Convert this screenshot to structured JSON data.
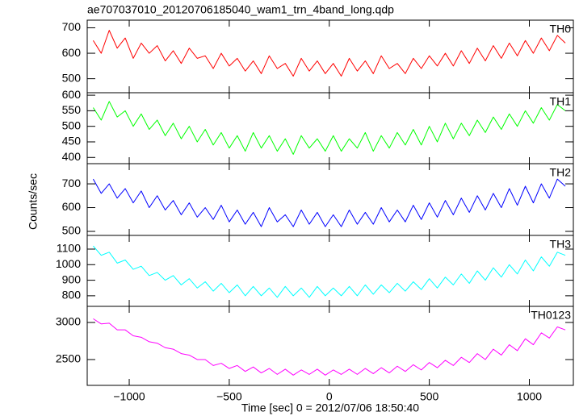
{
  "chart_data": [
    {
      "type": "line",
      "title": "ae707037010_20120706185040_wam1_trn_4band_long.qdp",
      "label": "TH0",
      "color": "#ff0000",
      "x": [
        -1180,
        -1140,
        -1100,
        -1060,
        -1020,
        -980,
        -940,
        -900,
        -860,
        -820,
        -780,
        -740,
        -700,
        -660,
        -620,
        -580,
        -540,
        -500,
        -460,
        -420,
        -380,
        -340,
        -300,
        -260,
        -220,
        -180,
        -140,
        -100,
        -60,
        -20,
        20,
        60,
        100,
        140,
        180,
        220,
        260,
        300,
        340,
        380,
        420,
        460,
        500,
        540,
        580,
        620,
        660,
        700,
        740,
        780,
        820,
        860,
        900,
        940,
        980,
        1020,
        1060,
        1100,
        1140,
        1180
      ],
      "values": [
        650,
        600,
        690,
        620,
        660,
        580,
        640,
        600,
        630,
        570,
        610,
        560,
        620,
        580,
        590,
        540,
        600,
        550,
        580,
        530,
        570,
        520,
        590,
        540,
        560,
        510,
        580,
        530,
        570,
        520,
        560,
        510,
        580,
        530,
        570,
        520,
        590,
        540,
        560,
        520,
        580,
        540,
        590,
        550,
        600,
        550,
        610,
        560,
        620,
        570,
        630,
        580,
        640,
        590,
        650,
        600,
        660,
        610,
        670,
        640
      ],
      "xlim": [
        -1210,
        1220
      ],
      "ylim": [
        445,
        730
      ],
      "yticks": [
        500,
        600,
        700
      ]
    },
    {
      "type": "line",
      "label": "TH1",
      "color": "#00ff00",
      "x": [
        -1180,
        -1140,
        -1100,
        -1060,
        -1020,
        -980,
        -940,
        -900,
        -860,
        -820,
        -780,
        -740,
        -700,
        -660,
        -620,
        -580,
        -540,
        -500,
        -460,
        -420,
        -380,
        -340,
        -300,
        -260,
        -220,
        -180,
        -140,
        -100,
        -60,
        -20,
        20,
        60,
        100,
        140,
        180,
        220,
        260,
        300,
        340,
        380,
        420,
        460,
        500,
        540,
        580,
        620,
        660,
        700,
        740,
        780,
        820,
        860,
        900,
        940,
        980,
        1020,
        1060,
        1100,
        1140,
        1180
      ],
      "values": [
        560,
        520,
        580,
        530,
        550,
        500,
        540,
        490,
        520,
        470,
        510,
        460,
        500,
        450,
        490,
        440,
        480,
        430,
        470,
        420,
        480,
        430,
        470,
        420,
        460,
        410,
        470,
        430,
        460,
        420,
        470,
        420,
        460,
        430,
        480,
        420,
        470,
        430,
        480,
        440,
        490,
        440,
        500,
        450,
        510,
        460,
        510,
        470,
        520,
        480,
        530,
        490,
        540,
        500,
        550,
        510,
        560,
        520,
        570,
        550
      ],
      "xlim": [
        -1210,
        1220
      ],
      "ylim": [
        380,
        608
      ],
      "yticks": [
        400,
        450,
        500,
        550,
        600
      ]
    },
    {
      "type": "line",
      "label": "TH2",
      "color": "#0000ff",
      "ylabel": "Counts/sec",
      "x": [
        -1180,
        -1140,
        -1100,
        -1060,
        -1020,
        -980,
        -940,
        -900,
        -860,
        -820,
        -780,
        -740,
        -700,
        -660,
        -620,
        -580,
        -540,
        -500,
        -460,
        -420,
        -380,
        -340,
        -300,
        -260,
        -220,
        -180,
        -140,
        -100,
        -60,
        -20,
        20,
        60,
        100,
        140,
        180,
        220,
        260,
        300,
        340,
        380,
        420,
        460,
        500,
        540,
        580,
        620,
        660,
        700,
        740,
        780,
        820,
        860,
        900,
        940,
        980,
        1020,
        1060,
        1100,
        1140,
        1180
      ],
      "values": [
        720,
        660,
        700,
        640,
        680,
        620,
        670,
        600,
        650,
        590,
        630,
        570,
        620,
        560,
        600,
        550,
        610,
        540,
        590,
        530,
        580,
        520,
        600,
        540,
        570,
        520,
        590,
        530,
        580,
        520,
        570,
        520,
        590,
        530,
        580,
        530,
        600,
        540,
        590,
        540,
        610,
        550,
        620,
        560,
        630,
        570,
        640,
        580,
        650,
        590,
        660,
        600,
        680,
        610,
        690,
        620,
        700,
        640,
        720,
        690
      ],
      "xlim": [
        -1210,
        1220
      ],
      "ylim": [
        483,
        785
      ],
      "yticks": [
        500,
        600,
        700
      ]
    },
    {
      "type": "line",
      "label": "TH3",
      "color": "#00ffff",
      "x": [
        -1180,
        -1140,
        -1100,
        -1060,
        -1020,
        -980,
        -940,
        -900,
        -860,
        -820,
        -780,
        -740,
        -700,
        -660,
        -620,
        -580,
        -540,
        -500,
        -460,
        -420,
        -380,
        -340,
        -300,
        -260,
        -220,
        -180,
        -140,
        -100,
        -60,
        -20,
        20,
        60,
        100,
        140,
        180,
        220,
        260,
        300,
        340,
        380,
        420,
        460,
        500,
        540,
        580,
        620,
        660,
        700,
        740,
        780,
        820,
        860,
        900,
        940,
        980,
        1020,
        1060,
        1100,
        1140,
        1180
      ],
      "values": [
        1120,
        1060,
        1080,
        1010,
        1030,
        970,
        990,
        930,
        950,
        900,
        930,
        870,
        910,
        850,
        890,
        830,
        880,
        820,
        870,
        800,
        860,
        800,
        850,
        790,
        860,
        800,
        850,
        790,
        860,
        800,
        850,
        800,
        860,
        800,
        870,
        810,
        870,
        820,
        880,
        830,
        890,
        840,
        910,
        850,
        920,
        870,
        940,
        880,
        960,
        900,
        980,
        920,
        1000,
        940,
        1030,
        960,
        1050,
        990,
        1080,
        1060
      ],
      "xlim": [
        -1210,
        1220
      ],
      "ylim": [
        732,
        1188
      ],
      "yticks": [
        800,
        900,
        1000,
        1100
      ]
    },
    {
      "type": "line",
      "label": "TH0123",
      "color": "#ff00ff",
      "xlabel": "Time [sec] 0 = 2012/07/06 18:50:40",
      "x": [
        -1180,
        -1140,
        -1100,
        -1060,
        -1020,
        -980,
        -940,
        -900,
        -860,
        -820,
        -780,
        -740,
        -700,
        -660,
        -620,
        -580,
        -540,
        -500,
        -460,
        -420,
        -380,
        -340,
        -300,
        -260,
        -220,
        -180,
        -140,
        -100,
        -60,
        -20,
        20,
        60,
        100,
        140,
        180,
        220,
        260,
        300,
        340,
        380,
        420,
        460,
        500,
        540,
        580,
        620,
        660,
        700,
        740,
        780,
        820,
        860,
        900,
        940,
        980,
        1020,
        1060,
        1100,
        1140,
        1180
      ],
      "values": [
        3050,
        2980,
        2990,
        2900,
        2900,
        2820,
        2800,
        2740,
        2720,
        2660,
        2640,
        2580,
        2560,
        2500,
        2500,
        2420,
        2450,
        2380,
        2420,
        2340,
        2400,
        2320,
        2380,
        2300,
        2370,
        2290,
        2360,
        2300,
        2370,
        2290,
        2360,
        2300,
        2370,
        2300,
        2380,
        2310,
        2390,
        2320,
        2410,
        2340,
        2430,
        2360,
        2460,
        2390,
        2490,
        2420,
        2530,
        2460,
        2580,
        2500,
        2640,
        2560,
        2700,
        2620,
        2780,
        2700,
        2860,
        2790,
        2940,
        2900
      ],
      "xlim": [
        -1210,
        1220
      ],
      "ylim": [
        2152,
        3217
      ],
      "yticks": [
        2500,
        3000
      ],
      "xticks": [
        {
          "value": -1000,
          "label": "−1000"
        },
        {
          "value": -500,
          "label": "−500"
        },
        0,
        500,
        1000
      ]
    }
  ]
}
